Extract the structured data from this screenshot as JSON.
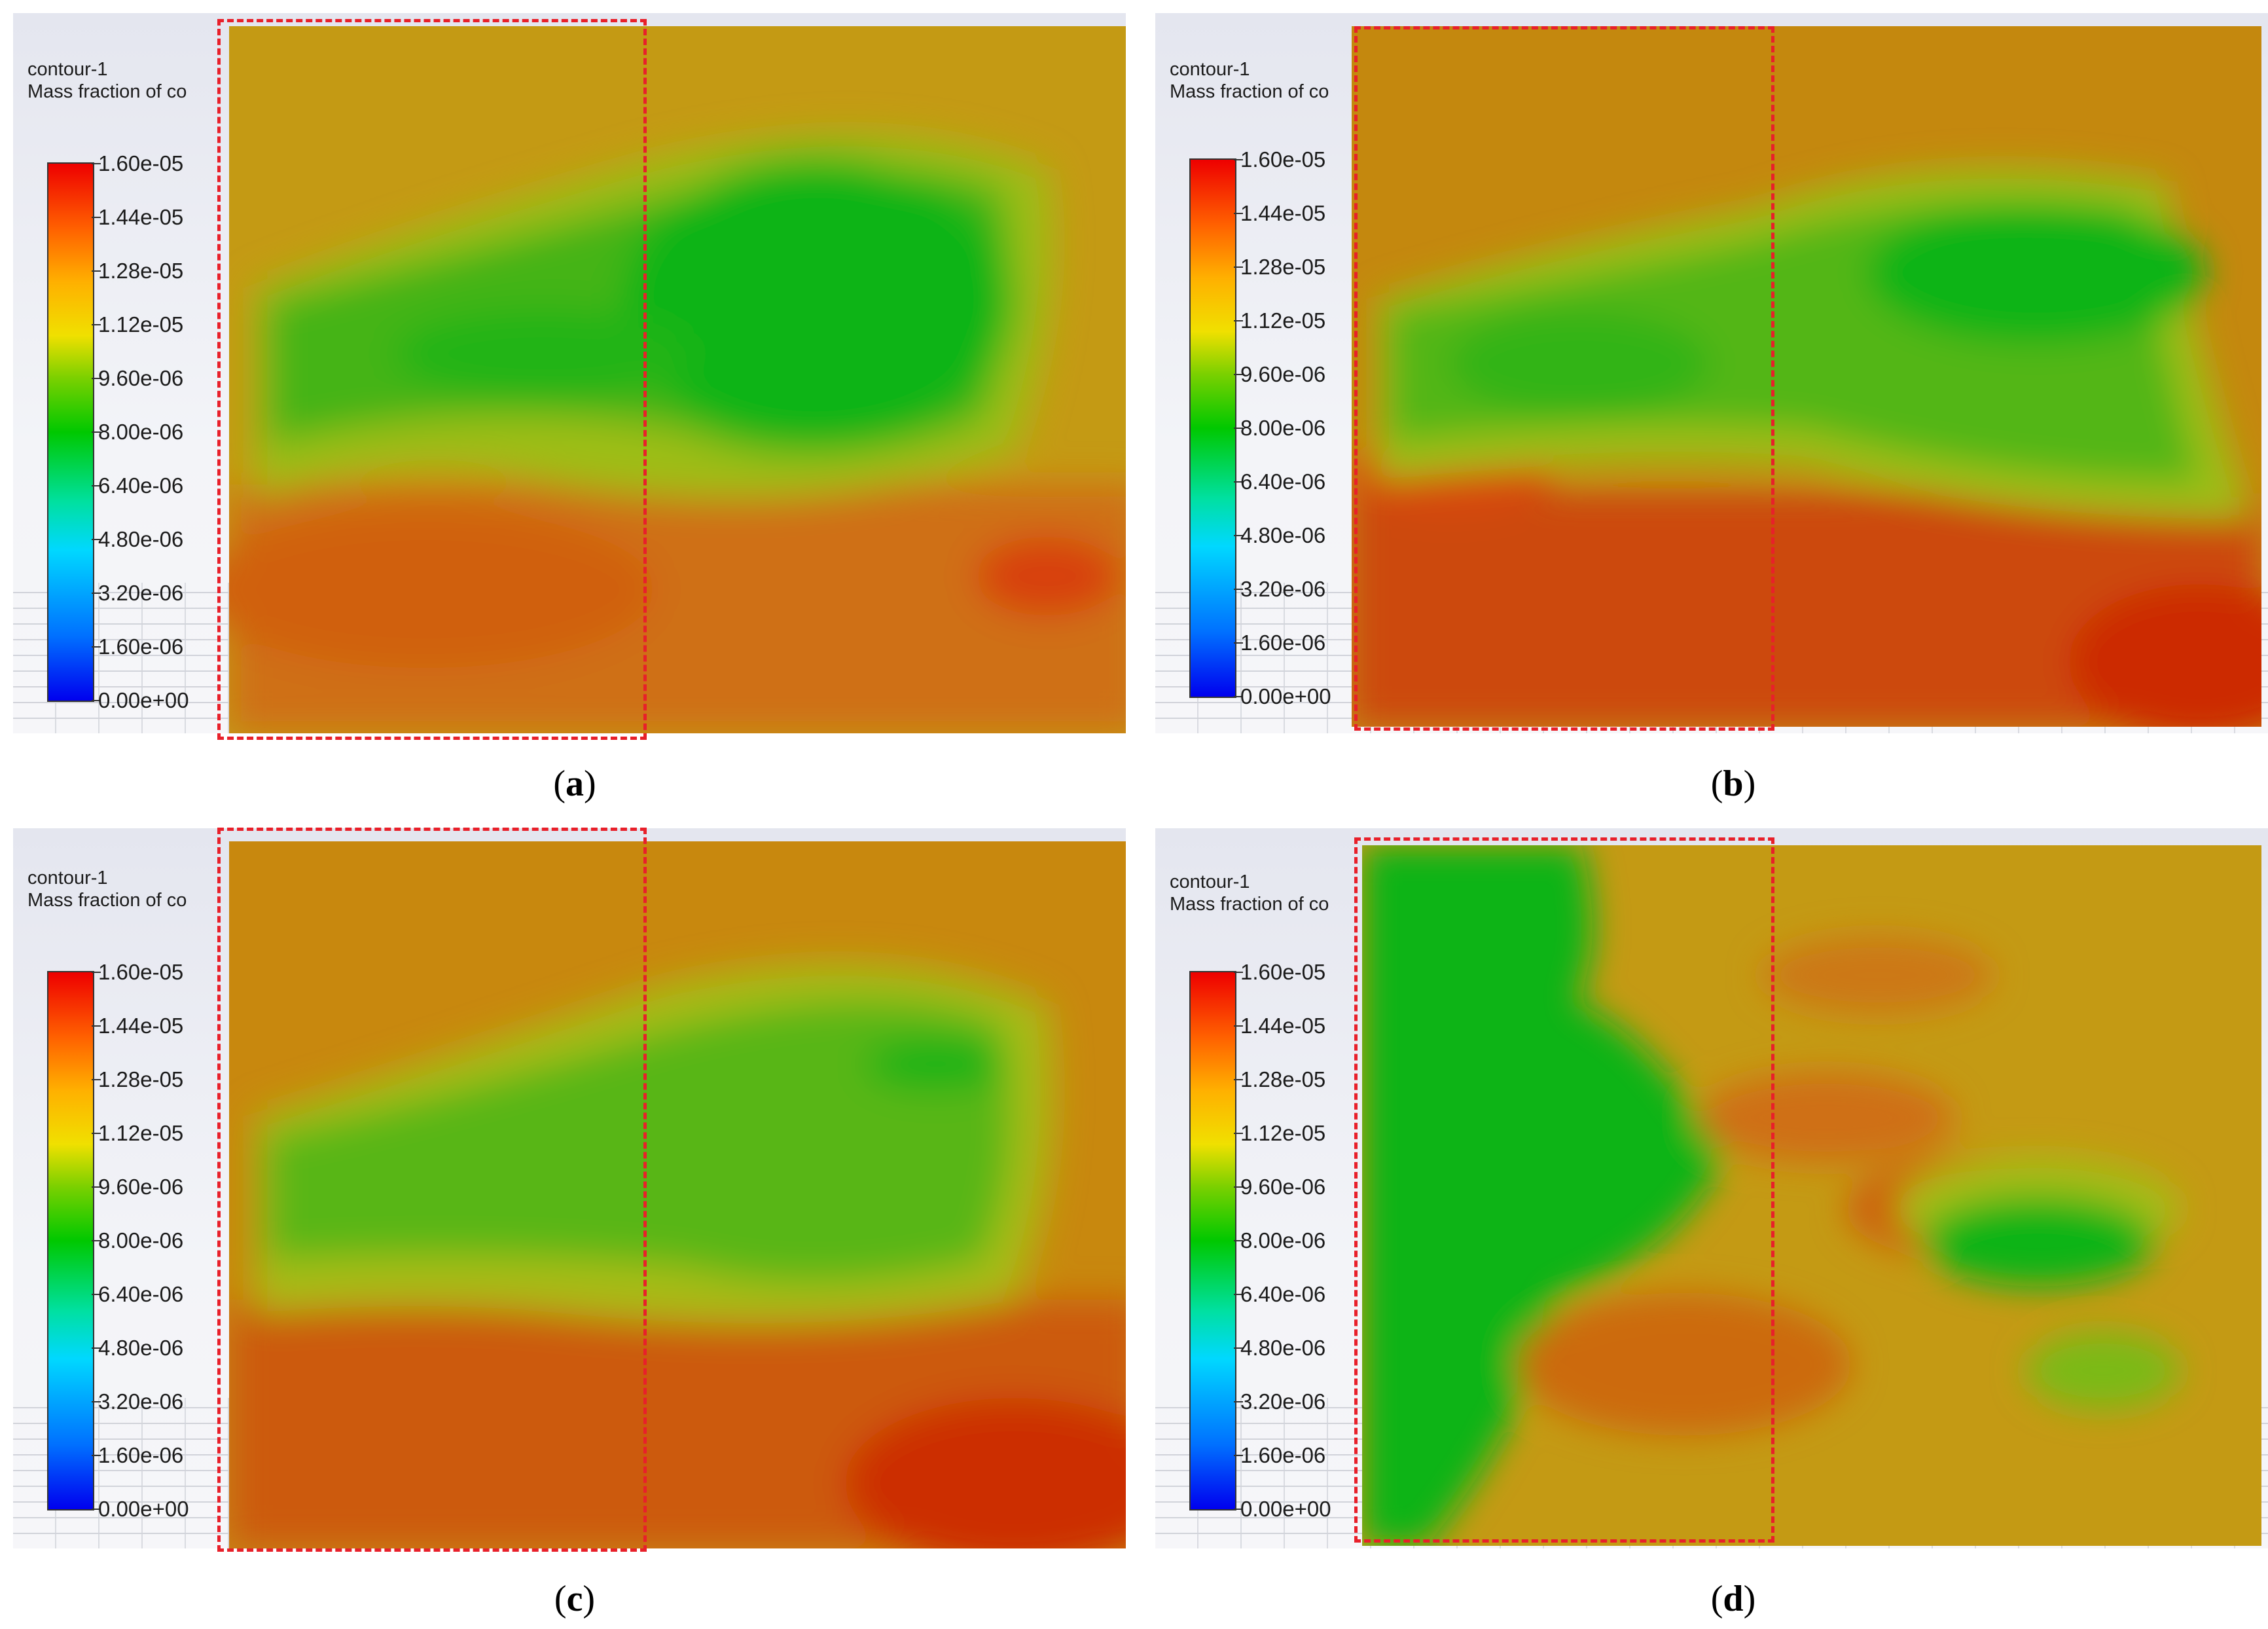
{
  "panels": [
    {
      "id": "a",
      "title": "contour-1",
      "subtitle": "Mass fraction of co",
      "caption_letter": "a"
    },
    {
      "id": "b",
      "title": "contour-1",
      "subtitle": "Mass fraction of co",
      "caption_letter": "b"
    },
    {
      "id": "c",
      "title": "contour-1",
      "subtitle": "Mass fraction of co",
      "caption_letter": "c"
    },
    {
      "id": "d",
      "title": "contour-1",
      "subtitle": "Mass fraction of co",
      "caption_letter": "d"
    }
  ],
  "colorbar_ticks": [
    "1.60e-05",
    "1.44e-05",
    "1.28e-05",
    "1.12e-05",
    "9.60e-06",
    "8.00e-06",
    "6.40e-06",
    "4.80e-06",
    "3.20e-06",
    "1.60e-06",
    "0.00e+00"
  ],
  "colormap": {
    "min_color": "#0000ee",
    "max_color": "#ee0000",
    "mid_color": "#00c800"
  },
  "highlight_color": "#e8202a",
  "caption_paren_open": "(",
  "caption_paren_close": ")"
}
